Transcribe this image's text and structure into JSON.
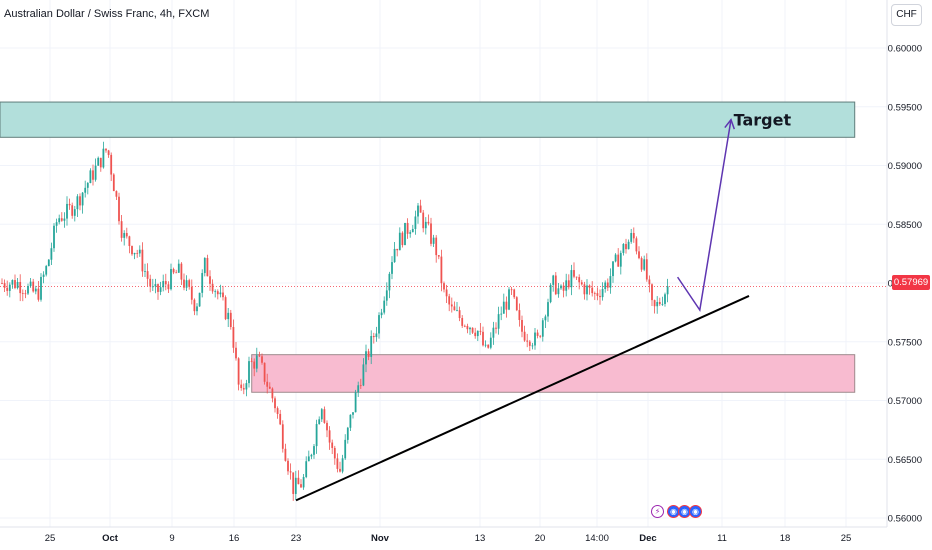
{
  "header": {
    "title": "Australian Dollar / Swiss Franc, 4h, FXCM",
    "currency_button": "CHF"
  },
  "colors": {
    "up": "#26a69a",
    "down": "#ef5350",
    "target_zone": "#b2dfdb",
    "support_zone": "#f8bbd0",
    "projection": "#5e35b1",
    "trendline": "#000000",
    "price_line": "#f23645"
  },
  "events": {
    "bolt_icon": "lightning-icon",
    "earnings_icons": [
      "earth-icon",
      "earth-icon",
      "earth-icon"
    ]
  },
  "chart_data": {
    "type": "candlestick",
    "symbol": "AUDCHF",
    "interval": "4h",
    "source": "FXCM",
    "current_price_label": "0.57969",
    "current_price": 0.57969,
    "y_axis": {
      "ticks": [
        "0.60000",
        "0.59500",
        "0.59000",
        "0.58500",
        "0.58000",
        "0.57500",
        "0.57000",
        "0.56500",
        "0.56000"
      ],
      "range": [
        0.5597,
        0.6018
      ]
    },
    "x_axis": {
      "ticks": [
        "25",
        "Oct",
        "9",
        "16",
        "23",
        "Nov",
        "13",
        "20",
        "14:00",
        "Dec",
        "11",
        "18",
        "25"
      ]
    },
    "price_path": [
      [
        "Sep 22",
        0.58
      ],
      [
        "Sep 24",
        0.579
      ],
      [
        "Sep 25",
        0.5815
      ],
      [
        "Sep 26",
        0.5855
      ],
      [
        "Sep 27",
        0.586
      ],
      [
        "Sep 28",
        0.587
      ],
      [
        "Oct 1",
        0.5915
      ],
      [
        "Oct 3",
        0.584
      ],
      [
        "Oct 5",
        0.5825
      ],
      [
        "Oct 7",
        0.579
      ],
      [
        "Oct 10",
        0.581
      ],
      [
        "Oct 12",
        0.578
      ],
      [
        "Oct 13",
        0.5815
      ],
      [
        "Oct 16",
        0.5765
      ],
      [
        "Oct 17",
        0.57
      ],
      [
        "Oct 18",
        0.573
      ],
      [
        "Oct 19",
        0.5735
      ],
      [
        "Oct 21",
        0.5695
      ],
      [
        "Oct 22",
        0.566
      ],
      [
        "Oct 23",
        0.5625
      ],
      [
        "Oct 24",
        0.563
      ],
      [
        "Oct 25",
        0.566
      ],
      [
        "Oct 26",
        0.57
      ],
      [
        "Oct 27",
        0.566
      ],
      [
        "Oct 28",
        0.564
      ],
      [
        "Oct 29",
        0.568
      ],
      [
        "Oct 30",
        0.5715
      ],
      [
        "Nov 1",
        0.5765
      ],
      [
        "Nov 3",
        0.583
      ],
      [
        "Nov 5",
        0.585
      ],
      [
        "Nov 6",
        0.586
      ],
      [
        "Nov 8",
        0.583
      ],
      [
        "Nov 9",
        0.579
      ],
      [
        "Nov 10",
        0.5775
      ],
      [
        "Nov 13",
        0.576
      ],
      [
        "Nov 14",
        0.574
      ],
      [
        "Nov 16",
        0.578
      ],
      [
        "Nov 17",
        0.579
      ],
      [
        "Nov 18",
        0.576
      ],
      [
        "Nov 20",
        0.575
      ],
      [
        "Nov 21",
        0.578
      ],
      [
        "Nov 22",
        0.58
      ],
      [
        "Nov 23",
        0.579
      ],
      [
        "Nov 24",
        0.5805
      ],
      [
        "Nov 27",
        0.579
      ],
      [
        "Nov 28",
        0.58
      ],
      [
        "Nov 29",
        0.5825
      ],
      [
        "Nov 30",
        0.584
      ],
      [
        "Dec 1",
        0.581
      ],
      [
        "Dec 2",
        0.5775
      ],
      [
        "Dec 3",
        0.5785
      ],
      [
        "Dec 4",
        0.5797
      ]
    ],
    "zones": [
      {
        "label": "Target",
        "from_date": "Sep 20",
        "to_date": "Dec 26",
        "low": 0.5924,
        "high": 0.5954
      },
      {
        "label": "",
        "from_date": "Oct 18",
        "to_date": "Dec 26",
        "low": 0.5707,
        "high": 0.5739
      }
    ],
    "trendline": {
      "start": [
        "Oct 23",
        0.5615
      ],
      "end": [
        "Dec 14",
        0.5789
      ]
    },
    "projection_path": [
      [
        "Dec 5",
        0.5805
      ],
      [
        "Dec 8",
        0.5777
      ],
      [
        "Dec 12",
        0.5939
      ]
    ]
  }
}
